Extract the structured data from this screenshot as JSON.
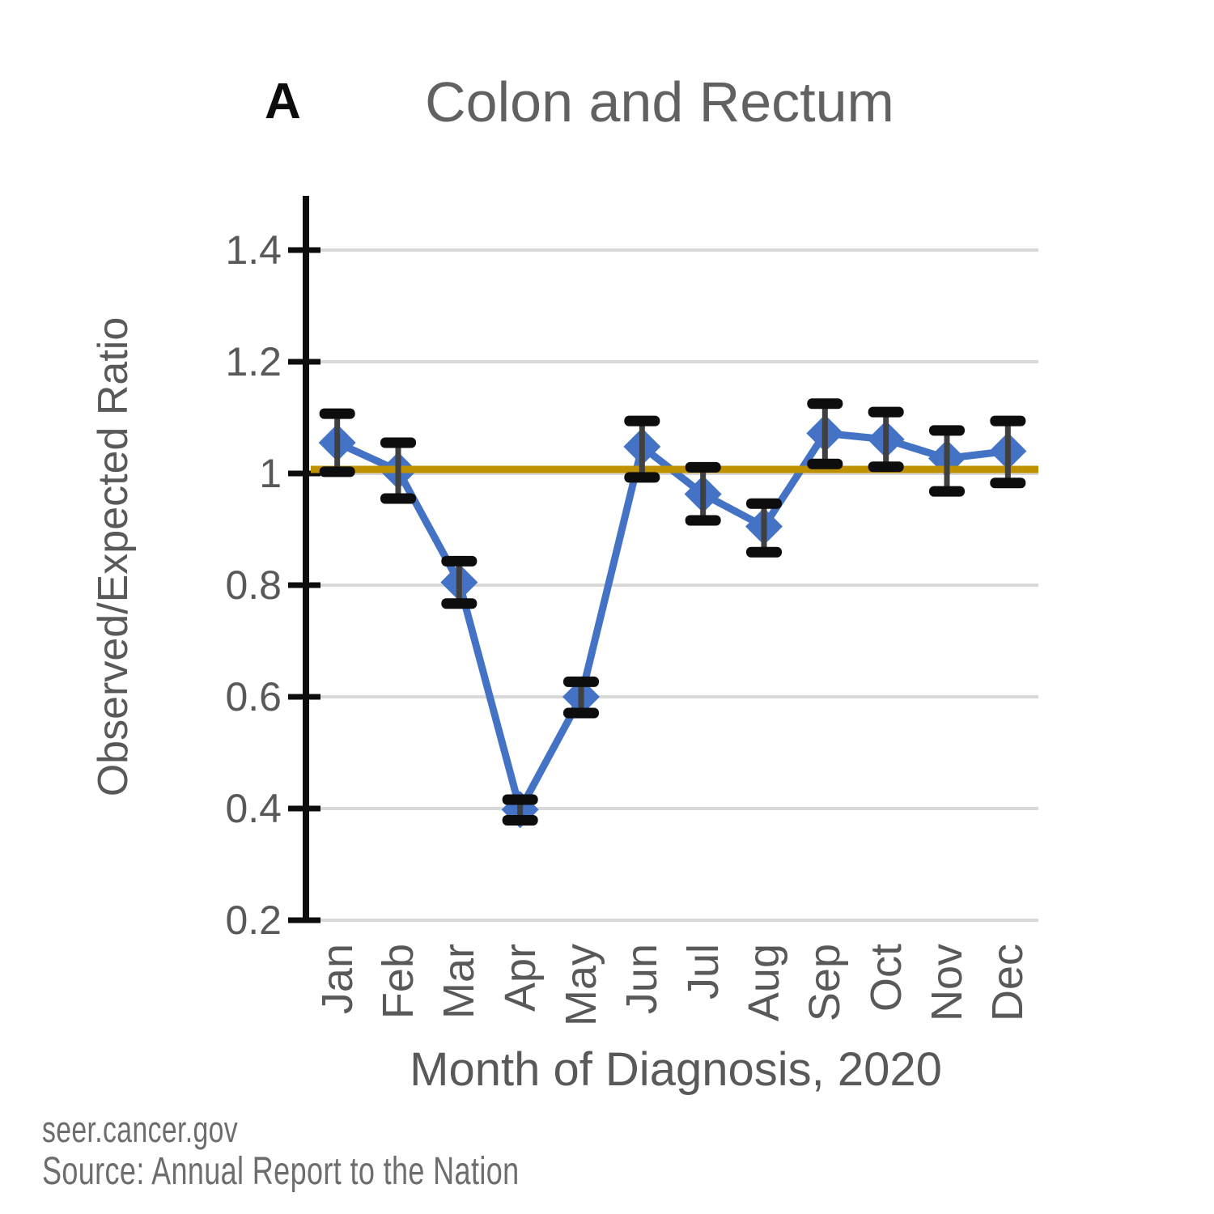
{
  "header": {
    "panel_label": "A",
    "title": "Colon and Rectum"
  },
  "footer": {
    "site": "seer.cancer.gov",
    "source": "Source: Annual Report to the Nation"
  },
  "colors": {
    "series_blue": "#4472C4",
    "reference_gold": "#BF9000",
    "error_cap_black": "#0d0d0d",
    "error_line_gray": "#404040",
    "gridline_gray": "#D9D9D9",
    "axis_black": "#0d0d0d",
    "label_gray": "#595959",
    "footer_gray": "#6d6d6d"
  },
  "chart_data": {
    "type": "line",
    "panel_label": "A",
    "title": "Colon and Rectum",
    "xlabel": "Month of Diagnosis, 2020",
    "ylabel": "Observed/Expected Ratio",
    "x": [
      "Jan",
      "Feb",
      "Mar",
      "Apr",
      "May",
      "Jun",
      "Jul",
      "Aug",
      "Sep",
      "Oct",
      "Nov",
      "Dec"
    ],
    "ylim": [
      0.2,
      1.5
    ],
    "yticks": [
      0.2,
      0.4,
      0.6,
      0.8,
      1,
      1.2,
      1.4
    ],
    "ytick_labels": [
      "0.2",
      "0.4",
      "0.6",
      "0.8",
      "1",
      "1.2",
      "1.4"
    ],
    "grid": "horizontal",
    "legend": "none",
    "series": [
      {
        "name": "Observed/Expected Ratio",
        "marker": "diamond",
        "color": "#4472C4",
        "values": [
          1.055,
          1.005,
          0.805,
          0.398,
          0.6,
          1.048,
          0.963,
          0.905,
          1.072,
          1.061,
          1.027,
          1.04
        ],
        "ci_low": [
          1.003,
          0.955,
          0.767,
          0.379,
          0.571,
          0.993,
          0.916,
          0.859,
          1.017,
          1.012,
          0.968,
          0.983
        ],
        "ci_high": [
          1.107,
          1.055,
          0.843,
          0.416,
          0.627,
          1.094,
          1.011,
          0.946,
          1.125,
          1.11,
          1.077,
          1.094
        ]
      }
    ],
    "reference_line": {
      "value": 1.0,
      "color": "#BF9000"
    }
  }
}
